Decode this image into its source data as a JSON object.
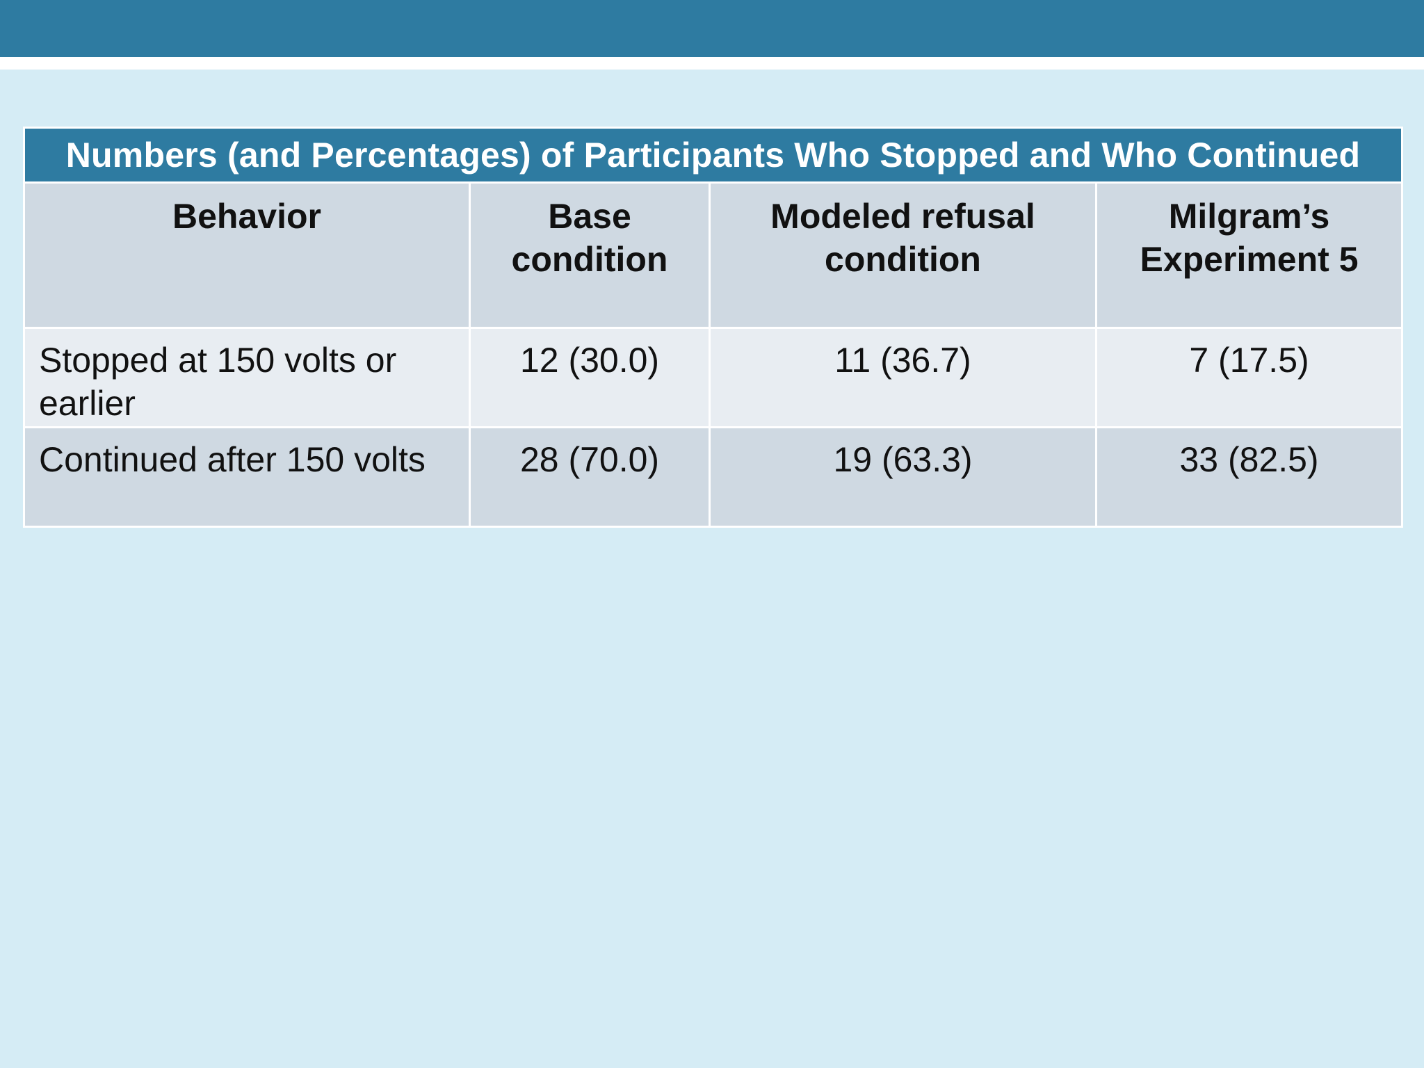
{
  "table": {
    "title": "Numbers (and Percentages) of Participants Who Stopped and Who Continued",
    "headers": [
      "Behavior",
      "Base condition",
      "Modeled refusal condition",
      "Milgram’s Experiment 5"
    ],
    "rows": [
      {
        "label": "Stopped at 150 volts or earlier",
        "values": [
          "12 (30.0)",
          "11 (36.7)",
          "7 (17.5)"
        ]
      },
      {
        "label": "Continued after 150 volts",
        "values": [
          "28 (70.0)",
          "19 (63.3)",
          "33 (82.5)"
        ]
      }
    ]
  },
  "colors": {
    "banner": "#2e7ba1",
    "background": "#d5ecf5",
    "header_fill": "#cfd9e2",
    "row_light": "#e8edf2"
  }
}
